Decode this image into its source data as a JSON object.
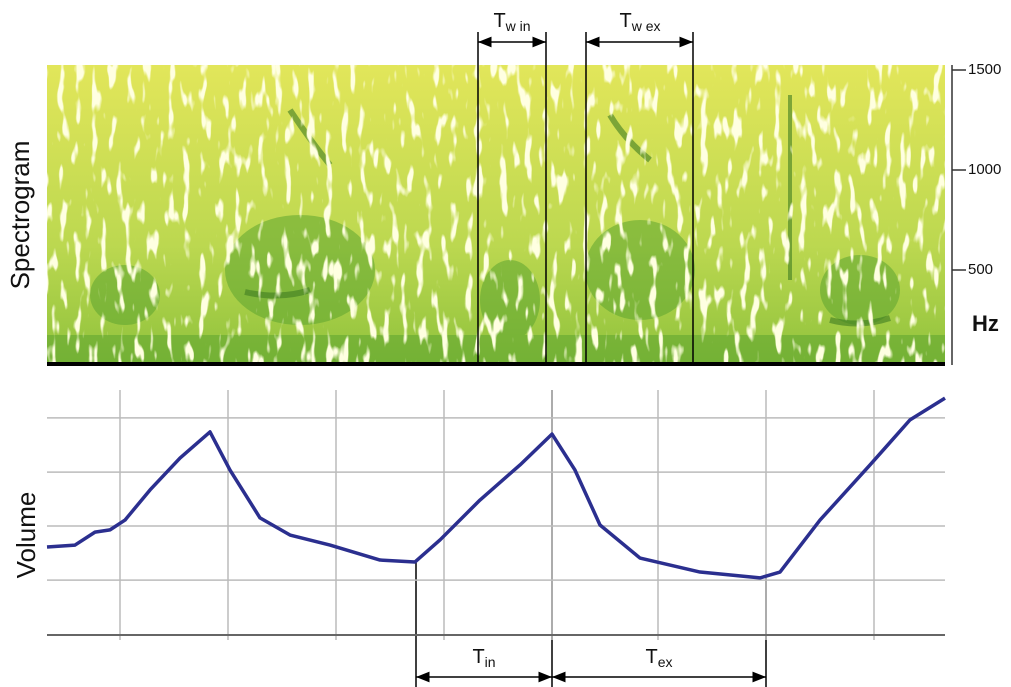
{
  "chart_data": [
    {
      "type": "spectrogram",
      "ylabel": "Spectrogram",
      "unit": "Hz",
      "ylim": [
        25,
        1525
      ],
      "yticks": [
        500,
        1000,
        1500
      ],
      "annotations": [
        {
          "main": "T",
          "sub": "w in"
        },
        {
          "main": "T",
          "sub": "w ex"
        }
      ]
    },
    {
      "type": "line",
      "ylabel": "Volume",
      "color": "#2b2f8f",
      "x": [
        0,
        28,
        48,
        63,
        78,
        103,
        133,
        163,
        183,
        213,
        243,
        283,
        333,
        368,
        393,
        433,
        473,
        505,
        528,
        553,
        593,
        653,
        713,
        733,
        773,
        823,
        863,
        898
      ],
      "values": [
        35.9,
        36.7,
        42,
        42.9,
        46.9,
        59.2,
        72.2,
        82.9,
        67.3,
        47.8,
        40.8,
        36.7,
        30.6,
        29.8,
        38.8,
        55.1,
        69.4,
        82,
        67.3,
        44.9,
        31.4,
        25.7,
        23.3,
        25.7,
        46.9,
        69.4,
        87.8,
        96.7
      ],
      "xlim": [
        0,
        898
      ],
      "ylim": [
        0,
        100
      ],
      "grid": true,
      "xticks": [
        73,
        181,
        289,
        397,
        505,
        611,
        719,
        827
      ],
      "yticks": [
        0,
        22.4,
        44.5,
        66.5,
        88.6
      ],
      "annotations": [
        {
          "main": "T",
          "sub": "in"
        },
        {
          "main": "T",
          "sub": "ex"
        }
      ]
    }
  ]
}
